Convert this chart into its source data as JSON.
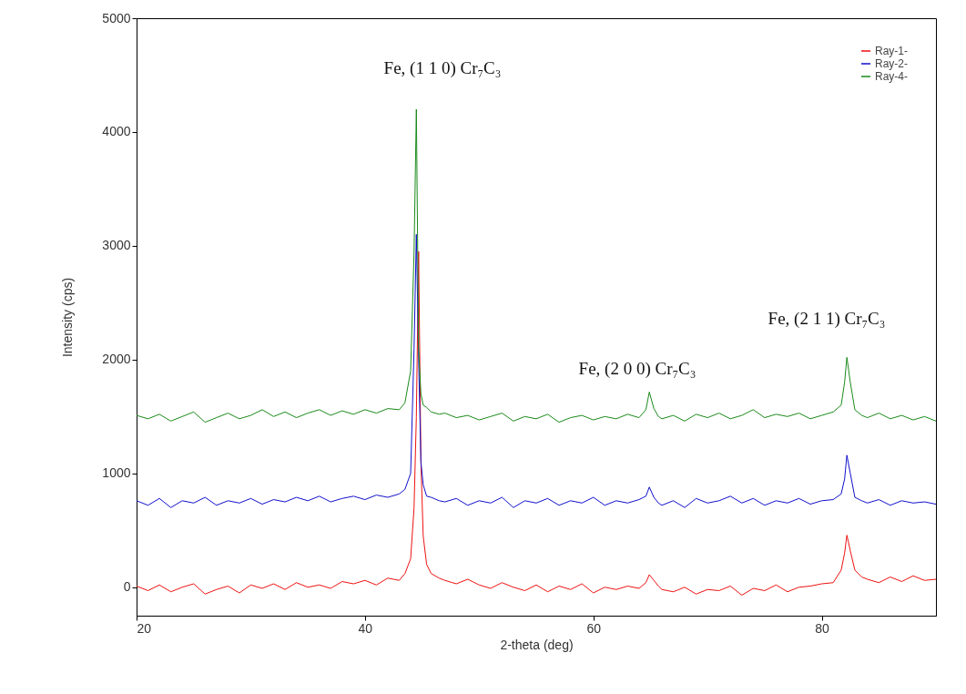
{
  "chart_data": {
    "type": "line",
    "xlabel": "2-theta (deg)",
    "ylabel": "Intensity (cps)",
    "xlim": [
      20,
      90
    ],
    "xticks": [
      20,
      40,
      60,
      80
    ],
    "ylim": [
      -250,
      5000
    ],
    "yticks": [
      0,
      1000,
      2000,
      3000,
      4000,
      5000
    ],
    "grid": false,
    "legend": "top right",
    "x": [
      20,
      21,
      22,
      23,
      24,
      25,
      26,
      27,
      28,
      29,
      30,
      31,
      32,
      33,
      34,
      35,
      36,
      37,
      38,
      39,
      40,
      41,
      42,
      43,
      43.5,
      44,
      44.3,
      44.5,
      44.7,
      44.9,
      45.1,
      45.4,
      45.8,
      46.5,
      47,
      48,
      49,
      50,
      51,
      52,
      53,
      54,
      55,
      56,
      57,
      58,
      59,
      60,
      61,
      62,
      63,
      64,
      64.6,
      64.9,
      65.3,
      65.7,
      66,
      67,
      68,
      69,
      70,
      71,
      72,
      73,
      74,
      75,
      76,
      77,
      78,
      79,
      80,
      81,
      81.7,
      82,
      82.2,
      82.5,
      82.9,
      83.5,
      84,
      85,
      86,
      87,
      88,
      89,
      90
    ],
    "series": [
      {
        "name": "Ray-1-",
        "color": "#ee1111",
        "values": [
          10,
          -30,
          20,
          -40,
          0,
          30,
          -60,
          -20,
          10,
          -50,
          20,
          -10,
          30,
          -20,
          40,
          0,
          20,
          -10,
          50,
          30,
          60,
          20,
          80,
          60,
          120,
          250,
          700,
          1500,
          2950,
          1100,
          450,
          200,
          120,
          80,
          60,
          30,
          70,
          20,
          -10,
          40,
          0,
          -30,
          20,
          -40,
          10,
          -20,
          30,
          -50,
          0,
          -20,
          10,
          -10,
          40,
          110,
          60,
          10,
          -20,
          -40,
          0,
          -60,
          -20,
          -30,
          10,
          -70,
          -10,
          -30,
          20,
          -40,
          0,
          10,
          30,
          40,
          150,
          300,
          457,
          320,
          150,
          90,
          70,
          40,
          90,
          50,
          100,
          60,
          70
        ]
      },
      {
        "name": "Ray-2-",
        "color": "#1010cc",
        "values": [
          760,
          720,
          780,
          700,
          760,
          740,
          790,
          720,
          760,
          740,
          780,
          730,
          770,
          750,
          790,
          760,
          800,
          750,
          780,
          800,
          770,
          810,
          790,
          820,
          860,
          1000,
          2100,
          3100,
          2000,
          1100,
          900,
          800,
          790,
          760,
          750,
          780,
          720,
          760,
          740,
          790,
          700,
          760,
          740,
          780,
          720,
          760,
          740,
          790,
          720,
          760,
          740,
          770,
          800,
          880,
          790,
          740,
          720,
          760,
          700,
          780,
          740,
          760,
          800,
          740,
          780,
          720,
          760,
          740,
          780,
          730,
          760,
          770,
          820,
          950,
          1160,
          1000,
          790,
          760,
          740,
          770,
          720,
          760,
          740,
          750,
          730
        ]
      },
      {
        "name": "Ray-4-",
        "color": "#1a8a1a",
        "values": [
          1510,
          1480,
          1520,
          1460,
          1500,
          1540,
          1450,
          1490,
          1530,
          1480,
          1510,
          1560,
          1500,
          1540,
          1490,
          1530,
          1560,
          1510,
          1550,
          1520,
          1560,
          1530,
          1570,
          1560,
          1620,
          1900,
          2950,
          4200,
          2100,
          1700,
          1600,
          1580,
          1540,
          1520,
          1530,
          1490,
          1510,
          1470,
          1500,
          1530,
          1460,
          1500,
          1480,
          1520,
          1450,
          1490,
          1510,
          1470,
          1500,
          1480,
          1520,
          1490,
          1560,
          1715,
          1570,
          1500,
          1480,
          1510,
          1460,
          1520,
          1490,
          1530,
          1480,
          1510,
          1560,
          1490,
          1520,
          1500,
          1530,
          1480,
          1510,
          1540,
          1600,
          1800,
          2020,
          1800,
          1560,
          1510,
          1490,
          1530,
          1480,
          1510,
          1470,
          1500,
          1460
        ]
      }
    ],
    "annotations": [
      "Fe, (1 1 0)  Cr₇C₃",
      "Fe, (2 0 0)  Cr₇C₃",
      "Fe, (2 1 1) Cr₇C₃"
    ]
  }
}
